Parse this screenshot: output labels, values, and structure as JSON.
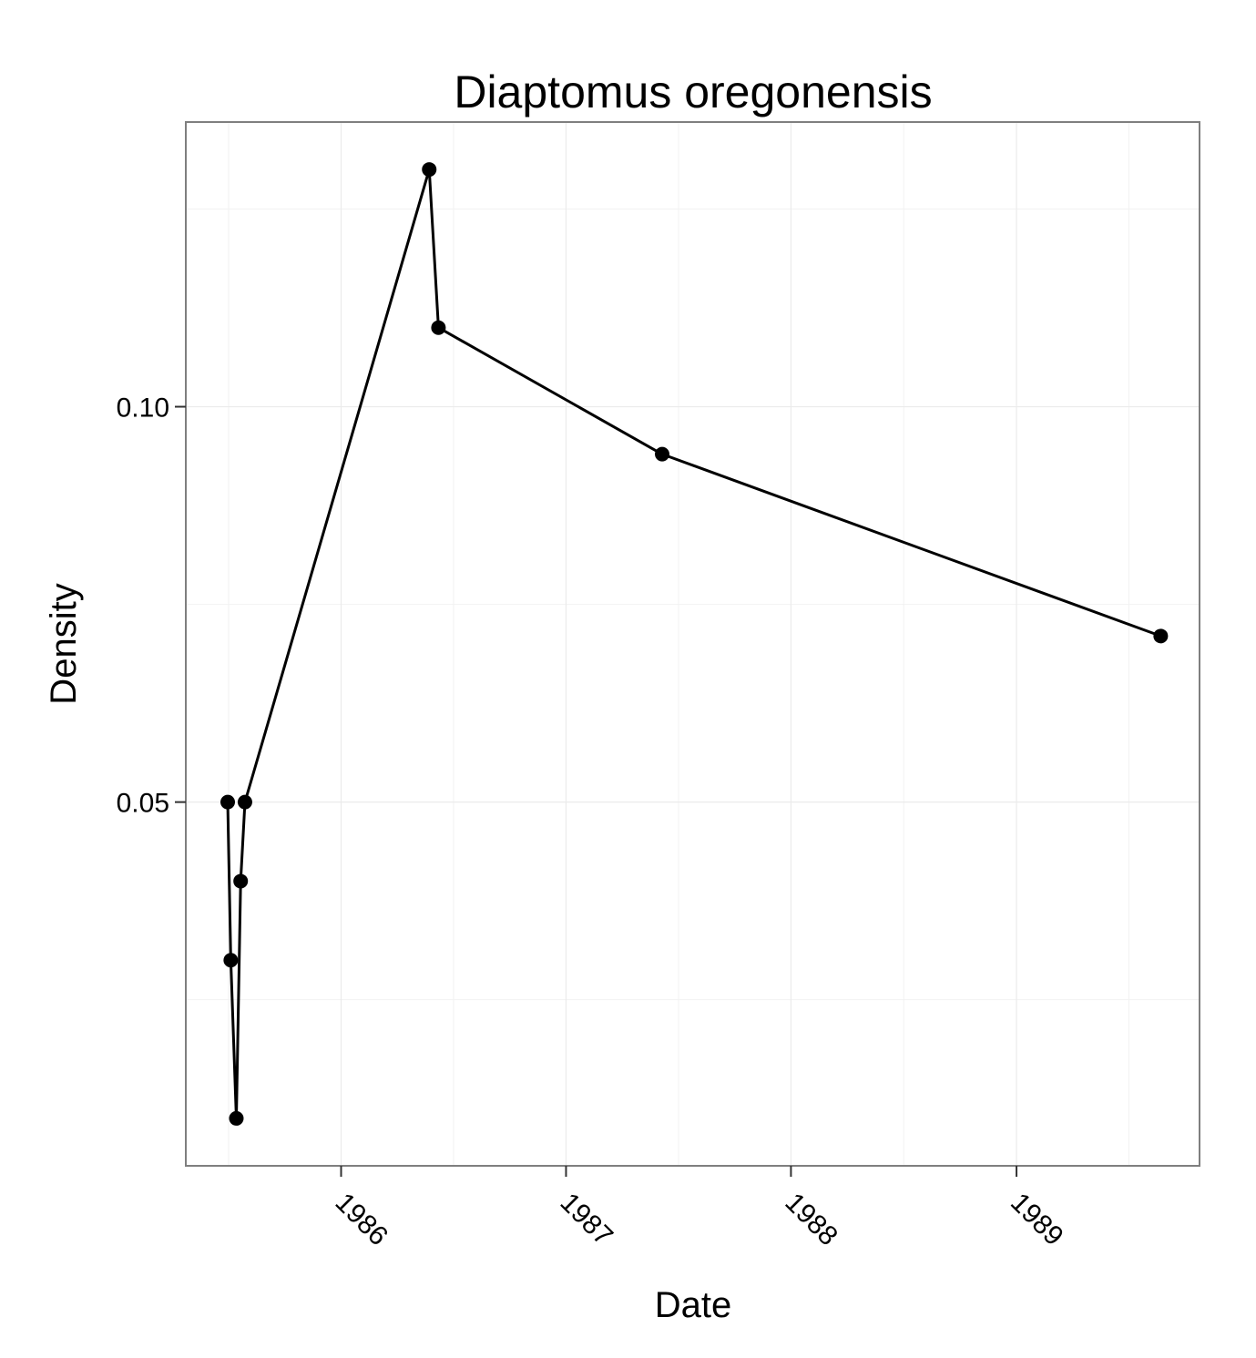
{
  "chart_data": {
    "type": "line",
    "title": "Diaptomus oregonensis",
    "xlabel": "Date",
    "ylabel": "Density",
    "x_axis_type": "date",
    "xlim": [
      "1985-04-24",
      "1989-10-25"
    ],
    "ylim": [
      0.004,
      0.136
    ],
    "x_ticks": [
      {
        "value": "1986-01-01",
        "label": "1986"
      },
      {
        "value": "1987-01-01",
        "label": "1987"
      },
      {
        "value": "1988-01-01",
        "label": "1988"
      },
      {
        "value": "1989-01-01",
        "label": "1989"
      }
    ],
    "y_ticks": [
      {
        "value": 0.05,
        "label": "0.05"
      },
      {
        "value": 0.1,
        "label": "0.10"
      }
    ],
    "grid": true,
    "legend": "none",
    "series": [
      {
        "color": "#000000",
        "x": [
          "1985-07-01",
          "1985-07-06",
          "1985-07-15",
          "1985-07-22",
          "1985-07-29",
          "1986-05-24",
          "1986-06-08",
          "1987-06-06",
          "1989-08-23"
        ],
        "y": [
          0.05,
          0.03,
          0.01,
          0.04,
          0.05,
          0.13,
          0.11,
          0.094,
          0.071
        ]
      }
    ]
  }
}
